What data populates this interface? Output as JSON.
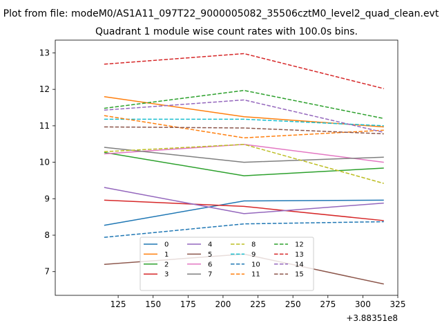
{
  "chart_data": {
    "type": "line",
    "supertitle": "Plot from file: modeM0/AS1A11_097T22_9000005082_35506cztM0_level2_quad_clean.evt",
    "title": "Quadrant 1 module wise count rates with 100.0s bins.",
    "x_offset_label": "+3.88351e8",
    "x": [
      115,
      215,
      315
    ],
    "xlim": [
      80,
      325
    ],
    "ylim": [
      6.35,
      13.35
    ],
    "xticks": [
      "125",
      "150",
      "175",
      "200",
      "225",
      "250",
      "275",
      "300",
      "325"
    ],
    "yticks": [
      "7",
      "8",
      "9",
      "10",
      "11",
      "12",
      "13"
    ],
    "grid": false,
    "legend": {
      "placement": "lower center",
      "columns": 4
    },
    "series": [
      {
        "name": "0",
        "values": [
          8.27,
          8.94,
          8.96
        ],
        "color": "#1f77b4",
        "dashed": false
      },
      {
        "name": "1",
        "values": [
          11.8,
          11.25,
          10.97
        ],
        "color": "#ff7f0e",
        "dashed": false
      },
      {
        "name": "2",
        "values": [
          10.27,
          9.63,
          9.84
        ],
        "color": "#2ca02c",
        "dashed": false
      },
      {
        "name": "3",
        "values": [
          8.96,
          8.79,
          8.4
        ],
        "color": "#d62728",
        "dashed": false
      },
      {
        "name": "4",
        "values": [
          9.31,
          8.59,
          8.88
        ],
        "color": "#9467bd",
        "dashed": false
      },
      {
        "name": "5",
        "values": [
          7.2,
          7.48,
          6.66
        ],
        "color": "#8c564b",
        "dashed": false
      },
      {
        "name": "6",
        "values": [
          10.23,
          10.49,
          10.0
        ],
        "color": "#e377c2",
        "dashed": false
      },
      {
        "name": "7",
        "values": [
          10.41,
          10.0,
          10.14
        ],
        "color": "#7f7f7f",
        "dashed": false
      },
      {
        "name": "8",
        "values": [
          10.29,
          10.49,
          9.42
        ],
        "color": "#bcbd22",
        "dashed": true
      },
      {
        "name": "9",
        "values": [
          11.18,
          11.18,
          11.0
        ],
        "color": "#17becf",
        "dashed": true
      },
      {
        "name": "10",
        "values": [
          7.94,
          8.31,
          8.37
        ],
        "color": "#1f77b4",
        "dashed": true
      },
      {
        "name": "11",
        "values": [
          11.28,
          10.67,
          10.88
        ],
        "color": "#ff7f0e",
        "dashed": true
      },
      {
        "name": "12",
        "values": [
          11.48,
          11.97,
          11.2
        ],
        "color": "#2ca02c",
        "dashed": true
      },
      {
        "name": "13",
        "values": [
          12.69,
          12.98,
          12.02
        ],
        "color": "#d62728",
        "dashed": true
      },
      {
        "name": "14",
        "values": [
          11.43,
          11.71,
          10.82
        ],
        "color": "#9467bd",
        "dashed": true
      },
      {
        "name": "15",
        "values": [
          10.97,
          10.94,
          10.78
        ],
        "color": "#8c564b",
        "dashed": true
      }
    ]
  }
}
